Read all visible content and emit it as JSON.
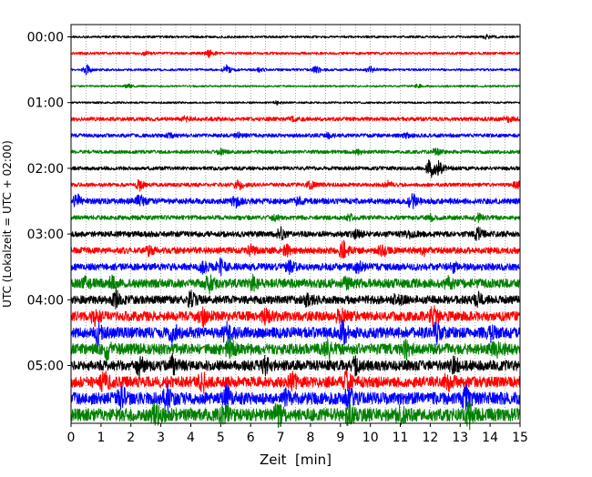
{
  "chart_data": {
    "type": "line",
    "title": "",
    "xlabel": "Zeit  [min]",
    "ylabel": "UTC (Lokalzeit = UTC + 02:00)",
    "xlim": [
      0,
      15
    ],
    "x_ticks": [
      "0",
      "1",
      "2",
      "3",
      "4",
      "5",
      "6",
      "7",
      "8",
      "9",
      "10",
      "11",
      "12",
      "13",
      "14",
      "15"
    ],
    "y_tick_labels": [
      "00:00",
      "01:00",
      "02:00",
      "03:00",
      "04:00",
      "05:00"
    ],
    "minutes_per_trace": 15,
    "grid": "vertical dotted lines every 0.5 min",
    "legend": "none",
    "trace_colors": [
      "#000000",
      "#ff0000",
      "#0000ff",
      "#008000"
    ],
    "traces": [
      {
        "start": "00:00",
        "noise": 0.18,
        "events": [
          [
            13.9,
            0.35
          ]
        ]
      },
      {
        "start": "00:15",
        "noise": 0.2,
        "events": [
          [
            4.6,
            0.6
          ],
          [
            2.5,
            0.3
          ]
        ]
      },
      {
        "start": "00:30",
        "noise": 0.18,
        "events": [
          [
            0.5,
            1.0
          ],
          [
            5.2,
            0.7
          ],
          [
            8.2,
            0.6
          ],
          [
            10.0,
            0.5
          ],
          [
            6.3,
            0.3
          ]
        ]
      },
      {
        "start": "00:45",
        "noise": 0.15,
        "events": [
          [
            1.9,
            0.3
          ],
          [
            11.6,
            0.3
          ]
        ]
      },
      {
        "start": "01:00",
        "noise": 0.15,
        "events": [
          [
            6.9,
            0.3
          ]
        ]
      },
      {
        "start": "01:15",
        "noise": 0.3,
        "events": [
          [
            3.8,
            0.35
          ],
          [
            7.4,
            0.3
          ],
          [
            14.6,
            0.45
          ]
        ]
      },
      {
        "start": "01:30",
        "noise": 0.3,
        "events": [
          [
            5.6,
            0.4
          ],
          [
            8.6,
            0.35
          ],
          [
            11.2,
            0.45
          ],
          [
            3.3,
            0.3
          ]
        ]
      },
      {
        "start": "01:45",
        "noise": 0.28,
        "events": [
          [
            5.0,
            0.4
          ],
          [
            12.2,
            0.6
          ],
          [
            9.6,
            0.3
          ]
        ]
      },
      {
        "start": "02:00",
        "noise": 0.3,
        "events": [
          [
            12.0,
            1.8
          ],
          [
            12.3,
            0.9
          ]
        ]
      },
      {
        "start": "02:15",
        "noise": 0.3,
        "events": [
          [
            2.3,
            0.9
          ],
          [
            5.6,
            0.8
          ],
          [
            8.0,
            0.7
          ],
          [
            10.6,
            0.5
          ],
          [
            14.9,
            0.6
          ]
        ]
      },
      {
        "start": "02:30",
        "noise": 0.45,
        "events": [
          [
            0.2,
            1.2
          ],
          [
            2.3,
            1.0
          ],
          [
            5.5,
            0.9
          ],
          [
            11.4,
            1.2
          ],
          [
            7.6,
            0.5
          ]
        ]
      },
      {
        "start": "02:45",
        "noise": 0.35,
        "events": [
          [
            9.3,
            0.5
          ],
          [
            12.0,
            0.5
          ],
          [
            13.6,
            0.5
          ],
          [
            6.8,
            0.4
          ]
        ]
      },
      {
        "start": "03:00",
        "noise": 0.45,
        "events": [
          [
            7.0,
            0.9
          ],
          [
            13.6,
            1.0
          ],
          [
            9.5,
            0.6
          ],
          [
            11.3,
            0.5
          ]
        ]
      },
      {
        "start": "03:15",
        "noise": 0.5,
        "events": [
          [
            9.1,
            1.4
          ],
          [
            10.4,
            0.9
          ],
          [
            7.2,
            0.7
          ],
          [
            11.8,
            0.6
          ],
          [
            6.0,
            0.7
          ],
          [
            2.6,
            0.6
          ]
        ]
      },
      {
        "start": "03:30",
        "noise": 0.55,
        "events": [
          [
            5.0,
            1.0
          ],
          [
            7.3,
            0.9
          ],
          [
            9.6,
            0.8
          ],
          [
            12.8,
            0.7
          ],
          [
            4.4,
            0.8
          ]
        ]
      },
      {
        "start": "03:45",
        "noise": 0.7,
        "events": [
          [
            1.4,
            1.1
          ],
          [
            4.6,
            1.4
          ],
          [
            6.1,
            1.0
          ],
          [
            9.2,
            0.8
          ],
          [
            12.6,
            0.8
          ],
          [
            0.5,
            0.7
          ]
        ]
      },
      {
        "start": "04:00",
        "noise": 0.65,
        "events": [
          [
            1.5,
            1.4
          ],
          [
            4.0,
            1.2
          ],
          [
            7.9,
            0.9
          ],
          [
            10.9,
            0.8
          ],
          [
            13.6,
            0.8
          ]
        ]
      },
      {
        "start": "04:15",
        "noise": 0.75,
        "events": [
          [
            4.4,
            1.3
          ],
          [
            9.0,
            1.2
          ],
          [
            12.1,
            1.4
          ],
          [
            0.8,
            1.0
          ],
          [
            6.5,
            1.0
          ]
        ]
      },
      {
        "start": "04:30",
        "noise": 0.85,
        "events": [
          [
            0.9,
            1.5
          ],
          [
            3.4,
            1.3
          ],
          [
            5.2,
            1.6
          ],
          [
            9.1,
            1.6
          ],
          [
            12.2,
            1.3
          ],
          [
            14.0,
            1.0
          ]
        ]
      },
      {
        "start": "04:45",
        "noise": 0.85,
        "events": [
          [
            1.2,
            1.3
          ],
          [
            5.3,
            1.4
          ],
          [
            8.6,
            1.4
          ],
          [
            11.2,
            1.1
          ],
          [
            14.2,
            1.1
          ]
        ]
      },
      {
        "start": "05:00",
        "noise": 0.8,
        "events": [
          [
            2.3,
            1.4
          ],
          [
            3.4,
            1.2
          ],
          [
            6.5,
            1.3
          ],
          [
            9.5,
            1.1
          ],
          [
            12.8,
            1.0
          ]
        ]
      },
      {
        "start": "05:15",
        "noise": 0.85,
        "events": [
          [
            1.1,
            1.5
          ],
          [
            4.4,
            1.3
          ],
          [
            9.2,
            1.5
          ],
          [
            12.6,
            1.2
          ],
          [
            7.4,
            1.0
          ]
        ]
      },
      {
        "start": "05:30",
        "noise": 0.95,
        "events": [
          [
            1.7,
            1.6
          ],
          [
            3.2,
            2.0
          ],
          [
            5.2,
            1.8
          ],
          [
            9.3,
            1.6
          ],
          [
            13.2,
            1.4
          ],
          [
            7.2,
            1.2
          ]
        ]
      },
      {
        "start": "05:45",
        "noise": 1.0,
        "events": [
          [
            2.8,
            1.7
          ],
          [
            6.9,
            1.5
          ],
          [
            9.3,
            1.4
          ],
          [
            13.3,
            1.6
          ],
          [
            11.0,
            1.1
          ],
          [
            5.1,
            1.2
          ]
        ]
      }
    ]
  }
}
